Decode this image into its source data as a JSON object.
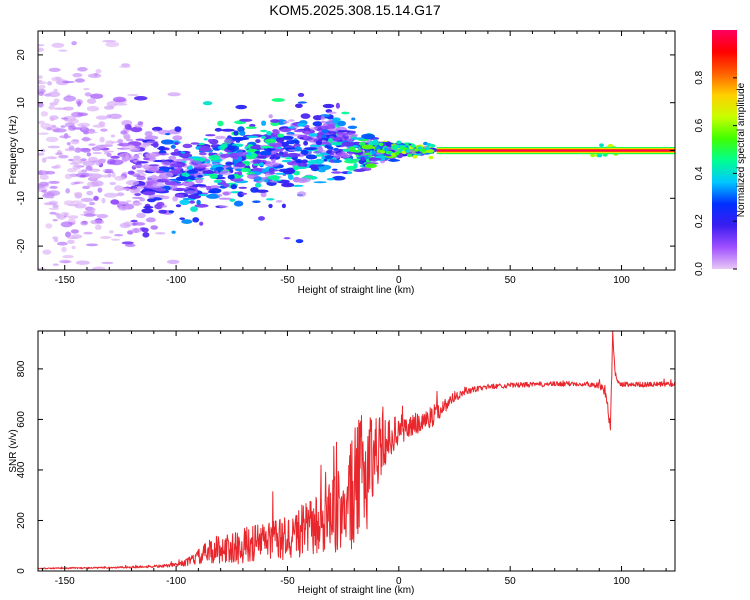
{
  "title": "KOM5.2025.308.15.14.G17",
  "colors": {
    "snr_line": "#e8262b",
    "frame": "#000000",
    "background": "#ffffff"
  },
  "chart_data": [
    {
      "type": "heatmap",
      "name": "spectrogram",
      "xlabel": "Height of straight line (km)",
      "ylabel": "Frequency (Hz)",
      "xlim": [
        -162,
        124
      ],
      "ylim": [
        -25,
        25
      ],
      "xticks": [
        -150,
        -100,
        -50,
        0,
        50,
        100
      ],
      "xtick_labels": [
        "-150",
        "-100",
        "-50",
        "0",
        "50",
        "100"
      ],
      "yticks": [
        -20,
        -10,
        0,
        10,
        20
      ],
      "ytick_labels": [
        "-20",
        "-10",
        "0",
        "10",
        "20"
      ],
      "colorbar": {
        "label": "Normalized spectral amplitude",
        "range": [
          0,
          1
        ],
        "ticks": [
          0.0,
          0.2,
          0.4,
          0.6,
          0.8
        ],
        "tick_labels": [
          "0.0",
          "0.2",
          "0.4",
          "0.6",
          "0.8"
        ],
        "colormap": [
          "#e8c8f6",
          "#a050ff",
          "#3a1df0",
          "#0030ff",
          "#00c8ff",
          "#00ff90",
          "#40ff00",
          "#c8ff00",
          "#ffd000",
          "#ff6000",
          "#ff0000",
          "#ff0060"
        ]
      },
      "carrier_band": {
        "x_start": 17,
        "x_end": 124,
        "frequency": 0
      },
      "activity_envelope": [
        {
          "x": -160,
          "center": 0,
          "spread": 24,
          "amplitude": 0.05
        },
        {
          "x": -120,
          "center": -4,
          "spread": 14,
          "amplitude": 0.1
        },
        {
          "x": -95,
          "center": -5,
          "spread": 6,
          "amplitude": 0.35
        },
        {
          "x": -75,
          "center": -2,
          "spread": 6,
          "amplitude": 0.4
        },
        {
          "x": -50,
          "center": -1,
          "spread": 8,
          "amplitude": 0.38
        },
        {
          "x": -30,
          "center": 2,
          "spread": 6,
          "amplitude": 0.35
        },
        {
          "x": -15,
          "center": 0,
          "spread": 3,
          "amplitude": 0.45
        },
        {
          "x": 0,
          "center": 0,
          "spread": 1,
          "amplitude": 0.55
        },
        {
          "x": 15,
          "center": 0,
          "spread": 0.5,
          "amplitude": 0.6
        }
      ],
      "highlights": [
        {
          "x_start": -12,
          "x_end": 16,
          "frequency": 0,
          "amplitude": 0.55
        },
        {
          "x_start": 87,
          "x_end": 98,
          "frequency": 0,
          "amplitude": 0.55
        }
      ]
    },
    {
      "type": "line",
      "name": "snr",
      "xlabel": "Height of straight line (km)",
      "ylabel": "SNR (v/v)",
      "xlim": [
        -162,
        124
      ],
      "ylim": [
        0,
        950
      ],
      "xticks": [
        -150,
        -100,
        -50,
        0,
        50,
        100
      ],
      "xtick_labels": [
        "-150",
        "-100",
        "-50",
        "0",
        "50",
        "100"
      ],
      "yticks": [
        0,
        200,
        400,
        600,
        800
      ],
      "ytick_labels": [
        "0",
        "200",
        "400",
        "600",
        "800"
      ],
      "series": [
        {
          "name": "SNR",
          "color": "#e8262b",
          "x": [
            -162,
            -140,
            -120,
            -105,
            -100,
            -95,
            -90,
            -85,
            -80,
            -75,
            -70,
            -65,
            -60,
            -55,
            -50,
            -45,
            -40,
            -35,
            -30,
            -25,
            -20,
            -15,
            -10,
            -5,
            0,
            5,
            10,
            15,
            20,
            25,
            30,
            35,
            40,
            50,
            60,
            70,
            80,
            85,
            90,
            93,
            95,
            96,
            97,
            98,
            100,
            110,
            124
          ],
          "values": [
            10,
            12,
            15,
            20,
            25,
            35,
            55,
            75,
            90,
            85,
            100,
            110,
            120,
            120,
            130,
            150,
            170,
            190,
            210,
            250,
            320,
            400,
            480,
            520,
            560,
            570,
            590,
            610,
            650,
            690,
            710,
            720,
            730,
            735,
            738,
            740,
            742,
            740,
            735,
            700,
            560,
            940,
            800,
            740,
            740,
            738,
            740
          ],
          "noise": [
            2,
            3,
            4,
            6,
            8,
            15,
            30,
            50,
            60,
            60,
            70,
            75,
            80,
            85,
            90,
            100,
            110,
            130,
            150,
            180,
            240,
            260,
            150,
            80,
            60,
            50,
            45,
            40,
            30,
            20,
            14,
            12,
            10,
            10,
            10,
            10,
            10,
            10,
            12,
            20,
            20,
            20,
            20,
            12,
            10,
            10,
            10
          ]
        }
      ]
    }
  ]
}
